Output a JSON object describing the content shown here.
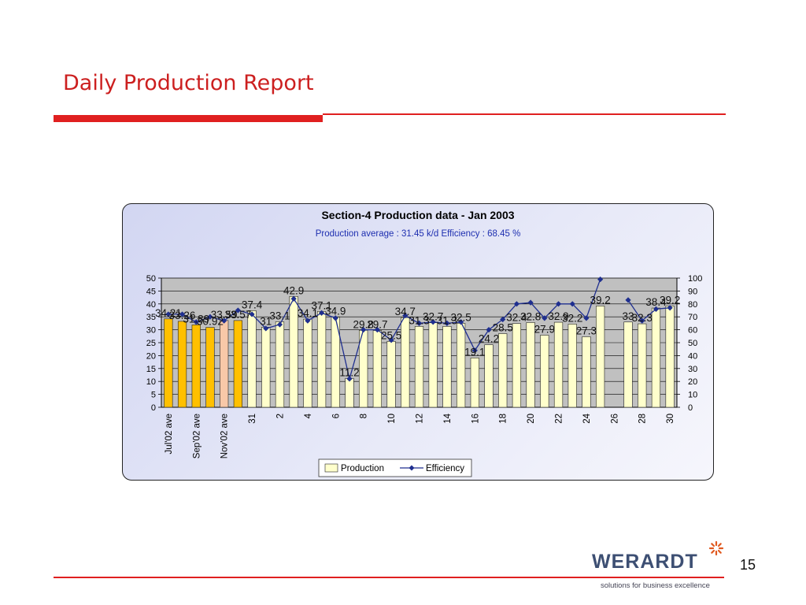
{
  "slide": {
    "title": "Daily Production Report",
    "page_number": "15",
    "logo_text": "WERARDT",
    "tagline": "solutions for business excellence"
  },
  "colors": {
    "accent": "#e02020",
    "bar_fill": "#ffffcc",
    "bar_monthly": "#ffc000",
    "bar_highlight": "#f8c8a8",
    "line": "#1f2f8f"
  },
  "chart_data": {
    "type": "bar",
    "title": "Section-4 Production data - Jan 2003",
    "subtitle": "Production average : 31.45   k/d          Efficiency :  68.45  %",
    "ylim": [
      0,
      50
    ],
    "y2lim": [
      0,
      100
    ],
    "yticks": [
      0,
      5,
      10,
      15,
      20,
      25,
      30,
      35,
      40,
      45,
      50
    ],
    "y2ticks": [
      0,
      10,
      20,
      30,
      40,
      50,
      60,
      70,
      80,
      90,
      100
    ],
    "grid": true,
    "legend": "bottom",
    "legend_entries": [
      "Production",
      "Efficiency"
    ],
    "categories": [
      "Jul'02 ave",
      "",
      "Sep'02 ave",
      "",
      "Nov'02 ave",
      "",
      "31",
      "",
      "2",
      "",
      "4",
      "",
      "6",
      "",
      "8",
      "",
      "10",
      "",
      "12",
      "",
      "14",
      "",
      "16",
      "",
      "18",
      "",
      "20",
      "",
      "22",
      "",
      "24",
      "",
      "26",
      "",
      "28",
      "",
      "30"
    ],
    "series": [
      {
        "name": "Production",
        "values": [
          34.21,
          33.26,
          31.89,
          30.92,
          33.59,
          33.57,
          37.4,
          31,
          33.1,
          42.9,
          34.1,
          37.1,
          34.9,
          11.2,
          29.8,
          29.7,
          25.5,
          34.7,
          31.3,
          32.7,
          31.3,
          32.5,
          19.1,
          24.2,
          28.5,
          32.4,
          32.8,
          27.9,
          32.9,
          32.2,
          27.3,
          39.2,
          null,
          33,
          32.3,
          38.4,
          39.2
        ],
        "labels": [
          "34.21",
          "33.26",
          "31.89",
          "30.92",
          "33.59",
          "33.57",
          "37.4",
          "31",
          "33.1",
          "42.9",
          "34.1",
          "37.1",
          "34.9",
          "11.2",
          "29.8",
          "29.7",
          "25.5",
          "34.7",
          "31.3",
          "32.7",
          "31.3",
          "32.5",
          "19.1",
          "24.2",
          "28.5",
          "32.4",
          "32.8",
          "27.9",
          "32.9",
          "32.2",
          "27.3",
          "39.2",
          "",
          "33",
          "32.3",
          "38.4",
          "39.2"
        ]
      },
      {
        "name": "Efficiency",
        "values": [
          72,
          72,
          66,
          70,
          67,
          75,
          72,
          61,
          64,
          84,
          67,
          73,
          69,
          22,
          60,
          60,
          52,
          71,
          65,
          66,
          65,
          66,
          44,
          60,
          68,
          80,
          81,
          69,
          80,
          80,
          69,
          99,
          null,
          83,
          67,
          76,
          77
        ]
      }
    ],
    "bar_colors": [
      "bar_monthly",
      "bar_monthly",
      "bar_monthly",
      "bar_monthly",
      "bar_highlight",
      "bar_monthly"
    ]
  }
}
